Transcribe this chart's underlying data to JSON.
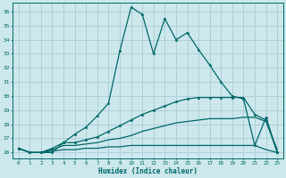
{
  "xlabel": "Humidex (Indice chaleur)",
  "background_color": "#cce8ec",
  "grid_color": "#aaccd4",
  "line_color": "#006868",
  "xlim": [
    -0.5,
    23.5
  ],
  "ylim": [
    25.6,
    36.6
  ],
  "yticks": [
    26,
    27,
    28,
    29,
    30,
    31,
    32,
    33,
    34,
    35,
    36
  ],
  "xticks": [
    0,
    1,
    2,
    3,
    4,
    5,
    6,
    7,
    8,
    9,
    10,
    11,
    12,
    13,
    14,
    15,
    16,
    17,
    18,
    19,
    20,
    21,
    22,
    23
  ],
  "series": [
    {
      "x": [
        0,
        1,
        2,
        3,
        4,
        5,
        6,
        7,
        8,
        9,
        10,
        11,
        12,
        13,
        14,
        15,
        16,
        17,
        18,
        19,
        20,
        21,
        22,
        23
      ],
      "y": [
        26.3,
        26.0,
        26.0,
        26.0,
        26.7,
        27.3,
        27.8,
        28.6,
        29.5,
        33.2,
        36.3,
        35.8,
        33.0,
        35.5,
        34.0,
        34.5,
        33.3,
        32.2,
        31.0,
        30.0,
        29.8,
        26.5,
        28.5,
        26.0
      ],
      "markers": true
    },
    {
      "x": [
        0,
        1,
        2,
        3,
        4,
        5,
        6,
        7,
        8,
        9,
        10,
        11,
        12,
        13,
        14,
        15,
        16,
        17,
        18,
        19,
        20,
        21,
        22,
        23
      ],
      "y": [
        26.3,
        26.0,
        26.0,
        26.3,
        26.7,
        26.7,
        26.9,
        27.1,
        27.5,
        27.9,
        28.3,
        28.7,
        29.0,
        29.3,
        29.6,
        29.8,
        29.9,
        29.9,
        29.9,
        29.9,
        29.9,
        28.7,
        28.3,
        26.0
      ],
      "markers": true
    },
    {
      "x": [
        0,
        1,
        2,
        3,
        4,
        5,
        6,
        7,
        8,
        9,
        10,
        11,
        12,
        13,
        14,
        15,
        16,
        17,
        18,
        19,
        20,
        21,
        22,
        23
      ],
      "y": [
        26.3,
        26.0,
        26.0,
        26.2,
        26.5,
        26.5,
        26.6,
        26.7,
        26.9,
        27.0,
        27.2,
        27.5,
        27.7,
        27.9,
        28.1,
        28.2,
        28.3,
        28.4,
        28.4,
        28.4,
        28.5,
        28.5,
        28.2,
        26.2
      ],
      "markers": false
    },
    {
      "x": [
        0,
        1,
        2,
        3,
        4,
        5,
        6,
        7,
        8,
        9,
        10,
        11,
        12,
        13,
        14,
        15,
        16,
        17,
        18,
        19,
        20,
        21,
        22,
        23
      ],
      "y": [
        26.3,
        26.0,
        26.0,
        26.1,
        26.2,
        26.2,
        26.3,
        26.3,
        26.4,
        26.4,
        26.5,
        26.5,
        26.5,
        26.5,
        26.5,
        26.5,
        26.5,
        26.5,
        26.5,
        26.5,
        26.5,
        26.5,
        26.2,
        26.0
      ],
      "markers": false
    }
  ]
}
